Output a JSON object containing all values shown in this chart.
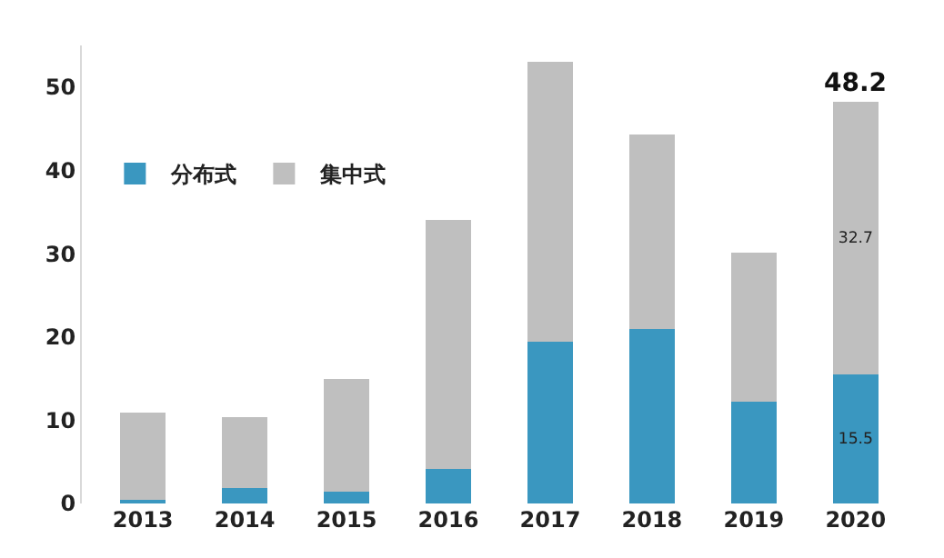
{
  "chart_data": {
    "type": "bar",
    "stacked": true,
    "categories": [
      "2013",
      "2014",
      "2015",
      "2016",
      "2017",
      "2018",
      "2019",
      "2020"
    ],
    "series": [
      {
        "name": "分布式",
        "color": "#3a97c0",
        "values": [
          0.4,
          1.9,
          1.4,
          4.2,
          19.4,
          20.9,
          12.2,
          15.5
        ],
        "value_labels": [
          null,
          null,
          null,
          null,
          null,
          null,
          null,
          "15.5"
        ]
      },
      {
        "name": "集中式",
        "color": "#bfbfbf",
        "values": [
          10.5,
          8.5,
          13.6,
          29.8,
          33.6,
          23.4,
          17.9,
          32.7
        ],
        "value_labels": [
          null,
          null,
          null,
          null,
          null,
          null,
          null,
          "32.7"
        ]
      }
    ],
    "totals": [
      null,
      null,
      null,
      null,
      null,
      null,
      null,
      "48.2"
    ],
    "ylim": [
      0,
      55
    ],
    "yticks": [
      0,
      10,
      20,
      30,
      40,
      50
    ],
    "grid": false,
    "legend": "left"
  }
}
